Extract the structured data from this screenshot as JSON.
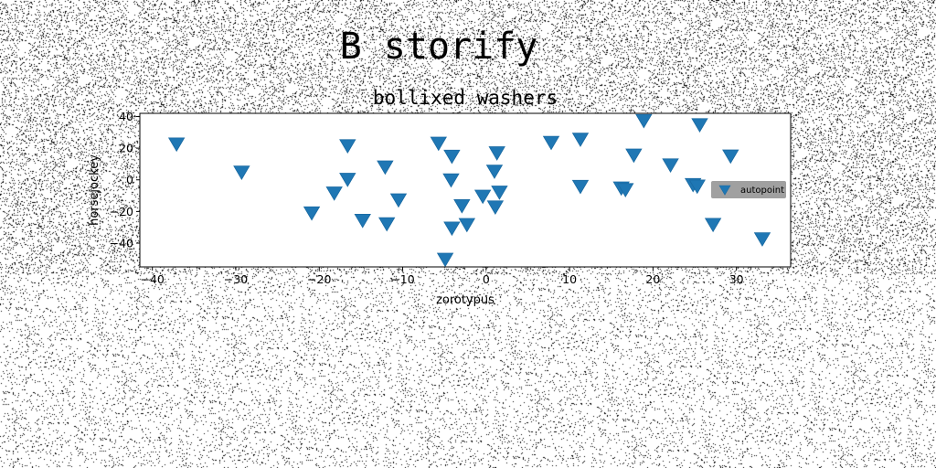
{
  "figure": {
    "suptitle": "B storify"
  },
  "chart_data": {
    "type": "scatter",
    "title": "bollixed washers",
    "xlabel": "zorotypus",
    "ylabel": "horsejockey",
    "xlim": [
      -41.5,
      36.5
    ],
    "ylim": [
      -55,
      42
    ],
    "xticks": [
      -40,
      -30,
      -20,
      -10,
      0,
      10,
      20,
      30
    ],
    "yticks": [
      -40,
      -20,
      0,
      20,
      40
    ],
    "xtick_labels": [
      "−40",
      "−30",
      "−20",
      "−10",
      "0",
      "10",
      "20",
      "30"
    ],
    "ytick_labels": [
      "−40",
      "−20",
      "0",
      "20",
      "40"
    ],
    "grid": false,
    "legend": {
      "position": "right",
      "background": "#a0a0a0"
    },
    "marker": "triangle-down",
    "color": "#1f77b4",
    "series": [
      {
        "name": "autopoint",
        "points": [
          [
            -37.1,
            22.8
          ],
          [
            -29.3,
            5.0
          ],
          [
            -20.9,
            -20.7
          ],
          [
            -18.2,
            -8.2
          ],
          [
            -16.6,
            21.7
          ],
          [
            -16.6,
            0.5
          ],
          [
            -14.8,
            -25.4
          ],
          [
            -12.1,
            8.3
          ],
          [
            -11.9,
            -27.6
          ],
          [
            -10.5,
            -12.5
          ],
          [
            -5.7,
            23.3
          ],
          [
            -4.9,
            -50.0
          ],
          [
            -4.1,
            15.1
          ],
          [
            -4.2,
            0.1
          ],
          [
            -4.1,
            -30.3
          ],
          [
            -2.9,
            -16.2
          ],
          [
            -2.3,
            -28.1
          ],
          [
            -0.4,
            -10.2
          ],
          [
            1.0,
            5.6
          ],
          [
            1.1,
            -17.0
          ],
          [
            1.3,
            17.2
          ],
          [
            1.6,
            -7.6
          ],
          [
            7.8,
            23.8
          ],
          [
            11.3,
            25.8
          ],
          [
            11.3,
            -4.0
          ],
          [
            16.2,
            -5.0
          ],
          [
            16.7,
            -6.0
          ],
          [
            17.7,
            15.8
          ],
          [
            18.9,
            37.6
          ],
          [
            22.1,
            9.6
          ],
          [
            24.8,
            -2.8
          ],
          [
            25.3,
            -3.8
          ],
          [
            25.6,
            35.0
          ],
          [
            27.2,
            -28.0
          ],
          [
            29.3,
            15.2
          ],
          [
            33.1,
            -37.1
          ]
        ]
      }
    ]
  }
}
